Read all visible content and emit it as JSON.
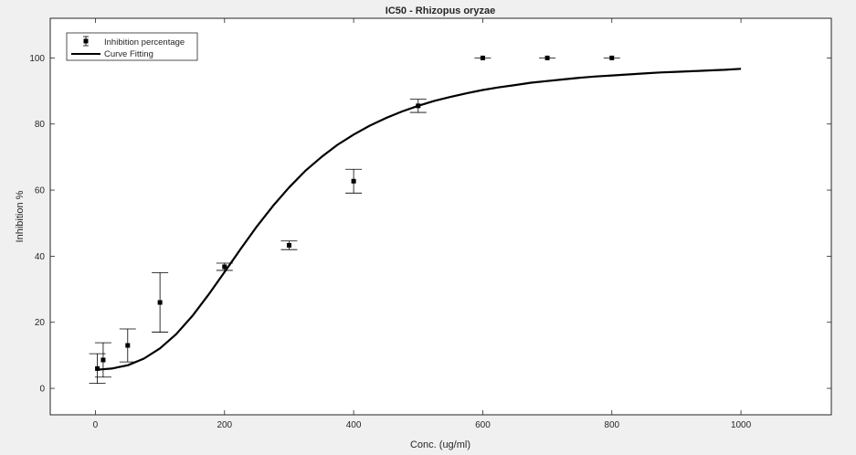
{
  "chart_data": {
    "type": "scatter",
    "title": "IC50 - Rhizopus oryzae",
    "xlabel": "Conc. (ug/ml)",
    "ylabel": "Inhibition %",
    "xlim": [
      -70,
      1140
    ],
    "ylim": [
      -8,
      112
    ],
    "xticks": [
      0,
      200,
      400,
      600,
      800,
      1000
    ],
    "yticks": [
      0,
      20,
      40,
      60,
      80,
      100
    ],
    "grid": false,
    "legend_position": "top-left",
    "colors": {
      "axes_bg": "#ffffff",
      "figure_bg": "#f0f0f0",
      "ink": "#000000",
      "axis": "#262626"
    },
    "series": [
      {
        "name": "Inhibition percentage",
        "kind": "errorbar",
        "marker": "square",
        "x": [
          3,
          12,
          50,
          100,
          200,
          300,
          400,
          500,
          600,
          700,
          800
        ],
        "y": [
          6,
          8.6,
          13,
          26,
          36.8,
          43.3,
          62.7,
          85.5,
          100,
          100,
          100
        ],
        "err": [
          4.5,
          5.2,
          5,
          9,
          1.1,
          1.3,
          3.6,
          2,
          0,
          0,
          0
        ]
      },
      {
        "name": "Curve Fitting",
        "kind": "line",
        "x": [
          0,
          25,
          50,
          75,
          100,
          125,
          150,
          175,
          200,
          225,
          250,
          275,
          300,
          325,
          350,
          375,
          400,
          425,
          450,
          475,
          500,
          525,
          550,
          575,
          600,
          625,
          650,
          675,
          700,
          725,
          750,
          775,
          800,
          825,
          850,
          875,
          900,
          925,
          950,
          975,
          1000
        ],
        "y": [
          5.6,
          6.0,
          7.0,
          9.0,
          12.1,
          16.4,
          21.9,
          28.3,
          35.2,
          42.2,
          49.0,
          55.2,
          60.8,
          65.8,
          70.0,
          73.7,
          76.8,
          79.5,
          81.8,
          83.8,
          85.5,
          87.0,
          88.2,
          89.3,
          90.3,
          91.1,
          91.8,
          92.5,
          93.0,
          93.5,
          94.0,
          94.4,
          94.7,
          95.0,
          95.3,
          95.6,
          95.8,
          96.0,
          96.2,
          96.4,
          96.7
        ]
      }
    ]
  }
}
